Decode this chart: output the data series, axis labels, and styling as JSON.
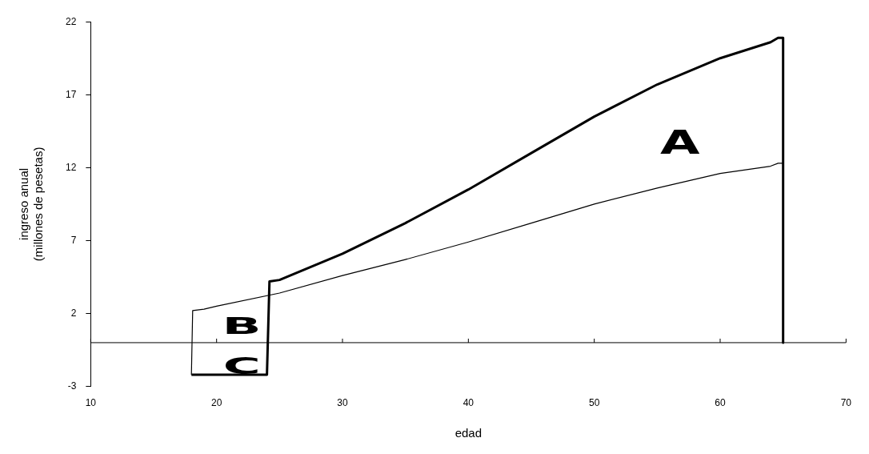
{
  "chart_data": {
    "type": "line",
    "xlabel": "edad",
    "ylabel": "ingreso anual\n(millones de pesetas)",
    "xlim": [
      10,
      70
    ],
    "xticks": [
      10,
      20,
      30,
      40,
      50,
      60,
      70
    ],
    "ylim": [
      -3,
      22
    ],
    "yticks": [
      -3,
      2,
      7,
      12,
      17,
      22
    ],
    "grid": false,
    "legend": false,
    "marker": "none",
    "line_style": "solid",
    "series": [
      {
        "color": "#000000",
        "x": [
          18,
          24,
          24.2,
          25,
          30,
          35,
          40,
          45,
          50,
          55,
          60,
          64,
          64.6,
          65,
          65
        ],
        "values": [
          -2.2,
          -2.2,
          4.2,
          4.3,
          6.1,
          8.2,
          10.5,
          13,
          15.5,
          17.7,
          19.5,
          20.6,
          20.9,
          20.9,
          0
        ]
      },
      {
        "color": "#000000",
        "x": [
          18,
          18.1,
          19,
          20,
          25,
          30,
          35,
          40,
          45,
          50,
          55,
          60,
          64,
          64.6,
          65,
          65
        ],
        "values": [
          -2.2,
          2.2,
          2.3,
          2.5,
          3.4,
          4.6,
          5.7,
          6.9,
          8.2,
          9.5,
          10.6,
          11.6,
          12.1,
          12.3,
          12.3,
          0
        ]
      }
    ],
    "ref_lines": [
      {
        "axis": "y",
        "value": 0,
        "color": "#000000"
      }
    ],
    "annotations": [
      "A",
      "B",
      "C"
    ]
  }
}
